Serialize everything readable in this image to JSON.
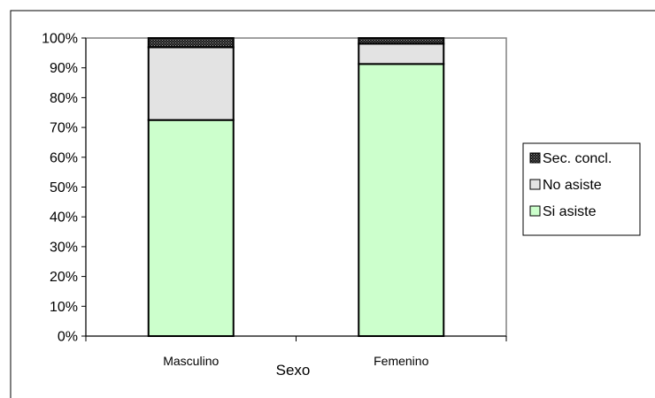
{
  "chart_data": {
    "type": "bar",
    "stacked": true,
    "percent_stacked": true,
    "categories": [
      "Masculino",
      "Femenino"
    ],
    "series": [
      {
        "name": "Si asiste",
        "values": [
          72.5,
          91.3
        ],
        "color": "#ccffcc",
        "pattern": "solid"
      },
      {
        "name": "No asiste",
        "values": [
          24.4,
          6.8
        ],
        "color": "#e3e3e3",
        "pattern": "solid"
      },
      {
        "name": "Sec. concl.",
        "values": [
          3.1,
          1.9
        ],
        "color": "#1a1a1a",
        "pattern": "dotted"
      }
    ],
    "xlabel": "Sexo",
    "ylabel": "",
    "ylim": [
      0,
      100
    ],
    "yticks": [
      "0%",
      "10%",
      "20%",
      "30%",
      "40%",
      "50%",
      "60%",
      "70%",
      "80%",
      "90%",
      "100%"
    ],
    "grid": false,
    "legend_position": "right",
    "legend_order": [
      "Sec. concl.",
      "No asiste",
      "Si asiste"
    ],
    "plot_background": "#ffffff",
    "plot_border": "#808080"
  }
}
